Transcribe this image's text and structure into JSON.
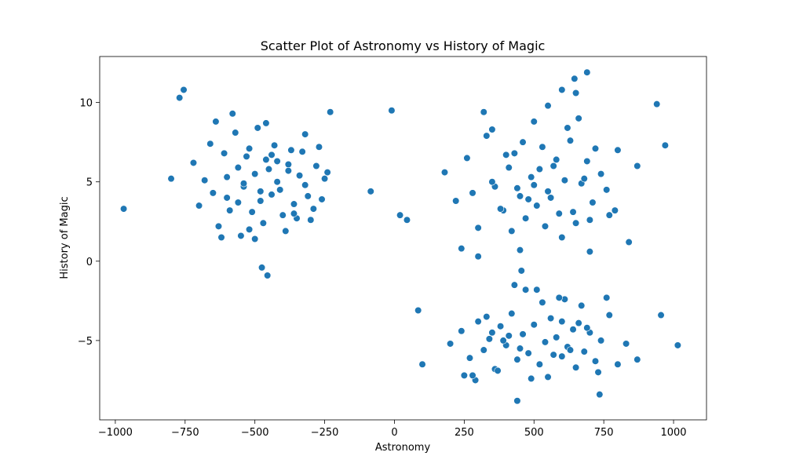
{
  "chart_data": {
    "type": "scatter",
    "title": "Scatter Plot of Astronomy vs History of Magic",
    "x_label": "Astronomy",
    "y_label": "History of Magic",
    "color": "#1f77b4",
    "xlim": [
      -1056,
      1118
    ],
    "ylim": [
      -10,
      12.9
    ],
    "xticks": [
      {
        "value": -1000,
        "label": "−1000"
      },
      {
        "value": -750,
        "label": "−750"
      },
      {
        "value": -500,
        "label": "−500"
      },
      {
        "value": -250,
        "label": "−250"
      },
      0,
      250,
      500,
      750,
      1000
    ],
    "yticks": [
      {
        "value": -5,
        "label": "−5"
      },
      0,
      5,
      10
    ],
    "x": [
      -720,
      -680,
      -650,
      -610,
      -590,
      -560,
      -540,
      -520,
      -500,
      -480,
      -460,
      -440,
      -420,
      -400,
      -380,
      -360,
      -340,
      -320,
      -300,
      -280,
      -260,
      -240,
      -700,
      -660,
      -630,
      -600,
      -570,
      -550,
      -530,
      -510,
      -490,
      -470,
      -450,
      -430,
      -410,
      -390,
      -370,
      -350,
      -330,
      -310,
      -290,
      -270,
      -250,
      -620,
      -580,
      -540,
      -500,
      -460,
      -420,
      -380,
      -560,
      -520,
      -480,
      -440,
      -640,
      -600,
      -360,
      -320,
      -230,
      -800,
      180,
      220,
      260,
      300,
      330,
      360,
      390,
      410,
      430,
      450,
      470,
      490,
      510,
      530,
      550,
      570,
      590,
      610,
      630,
      650,
      670,
      690,
      710,
      740,
      770,
      800,
      840,
      870,
      240,
      280,
      320,
      350,
      380,
      400,
      420,
      440,
      460,
      480,
      500,
      520,
      540,
      560,
      580,
      600,
      620,
      640,
      660,
      680,
      700,
      720,
      760,
      790,
      300,
      350,
      450,
      550,
      600,
      650,
      700,
      500,
      200,
      240,
      270,
      300,
      320,
      340,
      360,
      380,
      400,
      420,
      440,
      460,
      480,
      500,
      520,
      540,
      560,
      580,
      600,
      620,
      640,
      660,
      680,
      700,
      720,
      740,
      770,
      800,
      830,
      870,
      250,
      290,
      330,
      370,
      410,
      450,
      490,
      530,
      570,
      610,
      650,
      690,
      730,
      390,
      470,
      510,
      550,
      590,
      630,
      670,
      430,
      350,
      280,
      760,
      600,
      -970,
      -10,
      -85,
      20,
      45,
      -770,
      -755,
      940,
      970,
      1015,
      955,
      -475,
      -455,
      690,
      645,
      455,
      440,
      735,
      85,
      100
    ],
    "values": [
      6.2,
      5.1,
      4.3,
      6.8,
      3.2,
      5.9,
      4.7,
      7.1,
      5.5,
      3.8,
      6.4,
      4.2,
      5.0,
      2.9,
      6.1,
      3.6,
      5.4,
      4.8,
      2.6,
      6.0,
      3.9,
      5.6,
      3.5,
      7.4,
      2.2,
      5.3,
      8.1,
      1.6,
      6.6,
      3.1,
      8.4,
      2.4,
      5.8,
      7.3,
      4.5,
      1.9,
      7.0,
      2.7,
      6.9,
      4.1,
      3.3,
      7.2,
      5.2,
      1.5,
      9.3,
      4.9,
      1.4,
      8.7,
      6.3,
      5.7,
      3.7,
      2.0,
      4.4,
      6.7,
      8.8,
      4.0,
      3.0,
      8.0,
      9.4,
      5.2,
      5.6,
      3.8,
      6.5,
      2.1,
      7.9,
      4.7,
      3.2,
      5.9,
      6.8,
      4.1,
      2.7,
      5.3,
      3.5,
      7.2,
      4.4,
      6.0,
      3.0,
      5.1,
      7.6,
      2.4,
      4.9,
      6.3,
      3.7,
      5.5,
      2.9,
      7.0,
      1.2,
      6.0,
      0.8,
      4.3,
      9.4,
      5.0,
      3.3,
      6.7,
      1.9,
      4.6,
      7.5,
      3.9,
      8.8,
      5.8,
      2.2,
      4.0,
      6.4,
      1.5,
      8.4,
      3.1,
      9.0,
      5.2,
      2.6,
      7.1,
      4.5,
      3.2,
      0.3,
      8.3,
      0.7,
      9.8,
      10.8,
      10.6,
      0.6,
      4.8,
      -5.2,
      -4.4,
      -6.1,
      -3.8,
      -5.6,
      -4.9,
      -6.8,
      -4.1,
      -5.3,
      -3.3,
      -6.2,
      -4.6,
      -5.8,
      -4.0,
      -6.5,
      -5.1,
      -3.6,
      -4.8,
      -6.0,
      -5.4,
      -4.3,
      -3.9,
      -5.7,
      -4.5,
      -6.3,
      -5.0,
      -3.4,
      -6.5,
      -5.2,
      -6.2,
      -7.2,
      -7.5,
      -3.5,
      -6.9,
      -4.7,
      -5.5,
      -7.4,
      -2.6,
      -5.9,
      -2.4,
      -6.7,
      -4.2,
      -7.0,
      -5.0,
      -1.8,
      -1.8,
      -7.3,
      -2.3,
      -5.6,
      -2.8,
      -1.5,
      -4.5,
      -7.2,
      -2.3,
      -3.8,
      3.3,
      9.5,
      4.4,
      2.9,
      2.6,
      10.3,
      10.8,
      9.9,
      7.3,
      -5.3,
      -3.4,
      -0.4,
      -0.9,
      11.9,
      11.5,
      -0.6,
      -8.8,
      -8.4,
      -3.1,
      -6.5
    ]
  }
}
